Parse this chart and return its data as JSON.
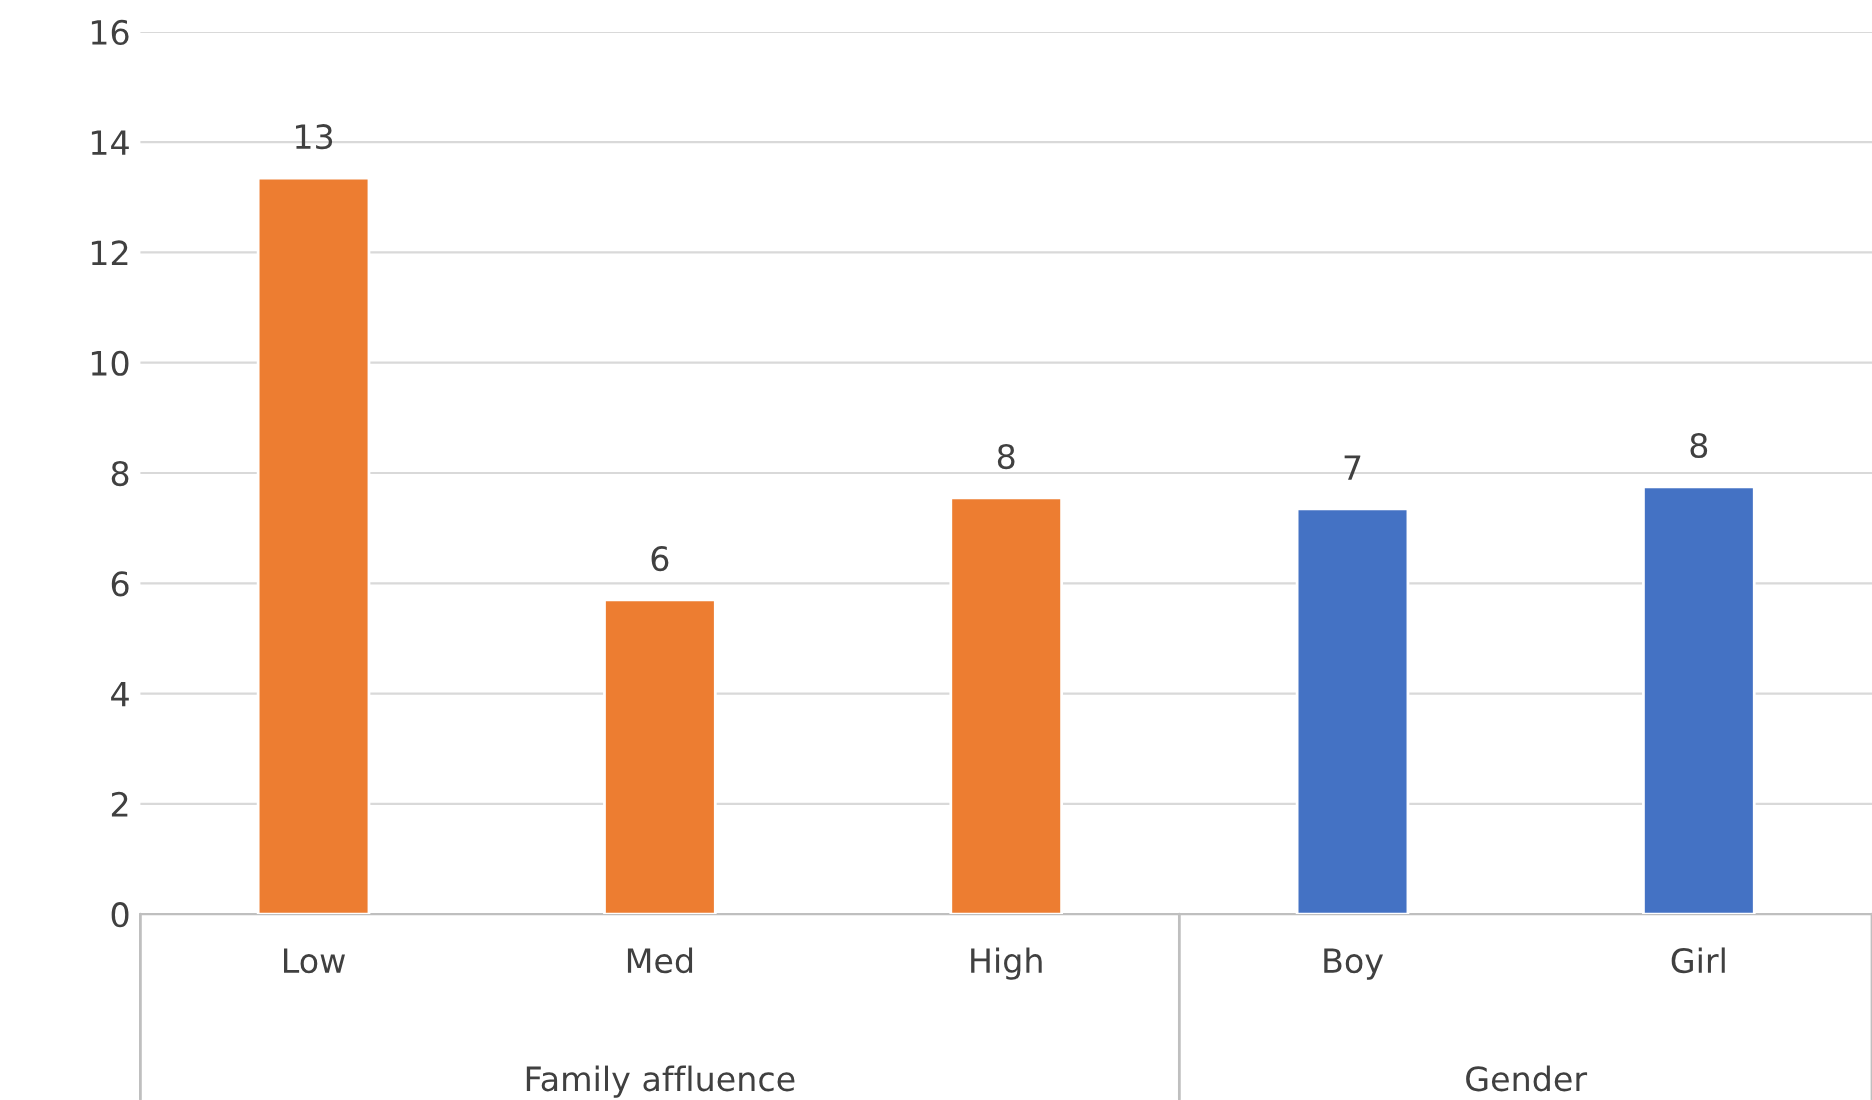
{
  "chart_data": {
    "type": "bar",
    "categories": [
      "Low",
      "Med",
      "High",
      "Boy",
      "Girl"
    ],
    "values": [
      13.35,
      5.7,
      7.55,
      7.35,
      7.75
    ],
    "colors": [
      "#ed7d31",
      "#ed7d31",
      "#ed7d31",
      "#4472c4",
      "#4472c4"
    ],
    "value_labels": [
      "13",
      "6",
      "8",
      "7",
      "8"
    ],
    "annotations": [
      "Family affluence",
      "Gender"
    ],
    "ylim": [
      0,
      16
    ],
    "yticks": [
      0,
      2,
      4,
      6,
      8,
      10,
      12,
      14,
      16
    ],
    "grid": "y"
  }
}
